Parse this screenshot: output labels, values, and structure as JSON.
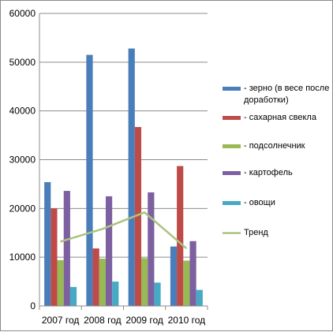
{
  "chart_data": {
    "type": "bar",
    "categories": [
      "2007 год",
      "2008 год",
      "2009 год",
      "2010 год"
    ],
    "series": [
      {
        "name": "- зерно (в весе после доработки)",
        "color": "#4A7EBB",
        "values": [
          25400,
          51500,
          52800,
          12200
        ]
      },
      {
        "name": "- сахарная свекла",
        "color": "#BE4B48",
        "values": [
          20000,
          11800,
          36700,
          28700
        ]
      },
      {
        "name": "- подсолнечник",
        "color": "#98B954",
        "values": [
          9400,
          9700,
          9800,
          9300
        ]
      },
      {
        "name": "- картофель",
        "color": "#7D60A0",
        "values": [
          23600,
          22500,
          23300,
          13300
        ]
      },
      {
        "name": "- овощи",
        "color": "#46AAC5",
        "values": [
          3900,
          5000,
          4800,
          3300
        ]
      }
    ],
    "trend": {
      "name": "Тренд",
      "color": "#A9C47F",
      "values": [
        13200,
        15800,
        19200,
        11800
      ]
    },
    "ylim": [
      0,
      60000
    ],
    "yticks": [
      "0",
      "10000",
      "20000",
      "30000",
      "40000",
      "50000",
      "60000"
    ],
    "ytick_values": [
      0,
      10000,
      20000,
      30000,
      40000,
      50000,
      60000
    ],
    "grid": true,
    "legend_position": "right",
    "title": "",
    "xlabel": "",
    "ylabel": ""
  }
}
